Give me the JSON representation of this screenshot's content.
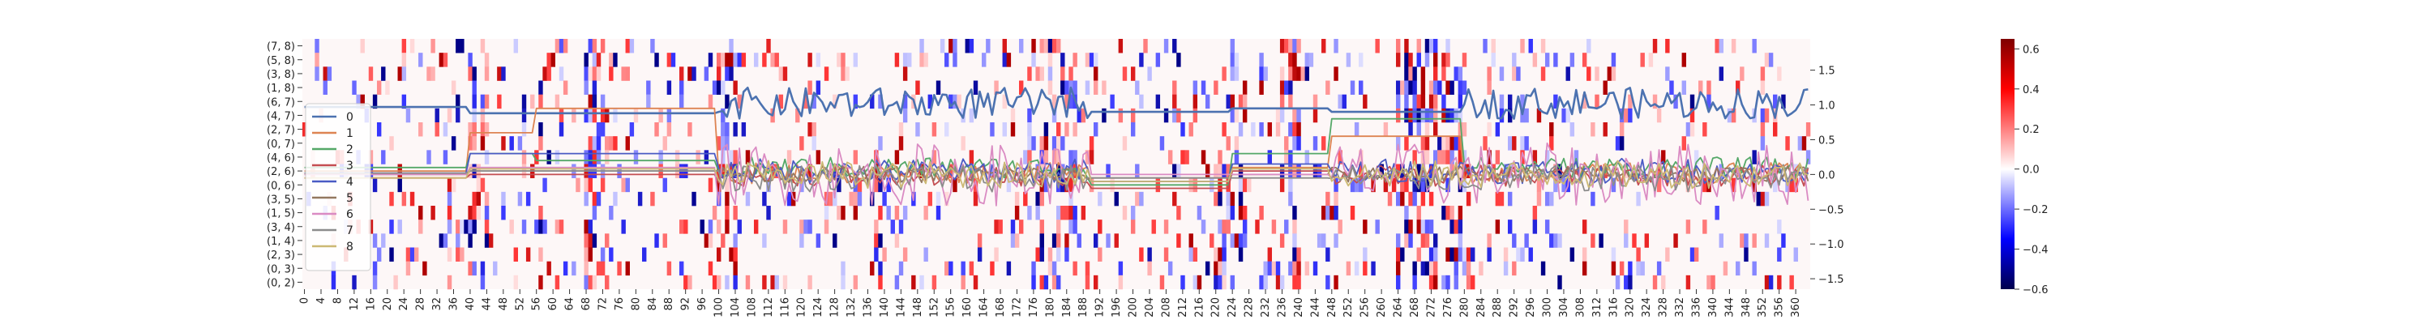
{
  "chart_data": {
    "type": "heatmap",
    "title": "",
    "xlabel": "",
    "ylabel": "",
    "x_ticks": [
      0,
      4,
      8,
      12,
      16,
      20,
      24,
      28,
      32,
      36,
      40,
      44,
      48,
      52,
      56,
      60,
      64,
      68,
      72,
      76,
      80,
      84,
      88,
      92,
      96,
      100,
      104,
      108,
      112,
      116,
      120,
      124,
      128,
      132,
      136,
      140,
      144,
      148,
      152,
      156,
      160,
      164,
      168,
      172,
      176,
      180,
      184,
      188,
      192,
      196,
      200,
      204,
      208,
      212,
      216,
      220,
      224,
      228,
      232,
      236,
      240,
      244,
      248,
      252,
      256,
      260,
      264,
      268,
      272,
      276,
      280,
      284,
      288,
      292,
      296,
      300,
      304,
      308,
      312,
      316,
      320,
      324,
      328,
      332,
      336,
      340,
      344,
      348,
      352,
      356,
      360
    ],
    "x_range": [
      0,
      363
    ],
    "y_labels": [
      "(7, 8)",
      "(5, 8)",
      "(3, 8)",
      "(1, 8)",
      "(6, 7)",
      "(4, 7)",
      "(2, 7)",
      "(0, 7)",
      "(4, 6)",
      "(2, 6)",
      "(0, 6)",
      "(3, 5)",
      "(1, 5)",
      "(3, 4)",
      "(1, 4)",
      "(2, 3)",
      "(0, 3)",
      "(0, 2)"
    ],
    "colorbar": {
      "vmin": -0.6,
      "vmax": 0.65,
      "ticks": [
        "0.6",
        "0.4",
        "0.2",
        "0.0",
        "−0.2",
        "−0.4",
        "−0.6"
      ],
      "tick_values": [
        0.6,
        0.4,
        0.2,
        0.0,
        -0.2,
        -0.4,
        -0.6
      ],
      "colors": [
        "#00004d",
        "#0000ff",
        "#ffffff",
        "#ff0000",
        "#7f0000"
      ]
    },
    "line_axis": {
      "ylim": [
        -1.65,
        1.95
      ],
      "ticks": [
        "1.5",
        "1.0",
        "0.5",
        "0.0",
        "−0.5",
        "−1.0",
        "−1.5"
      ],
      "tick_values": [
        1.5,
        1.0,
        0.5,
        0.0,
        -0.5,
        -1.0,
        -1.5
      ],
      "position": "right"
    },
    "legend": {
      "position": "lower-left"
    },
    "series": [
      {
        "name": "0",
        "color": "#4c72b0",
        "segments": [
          [
            0,
            40,
            0.97
          ],
          [
            40,
            100,
            0.88
          ]
        ],
        "noisy_amp": 0.28,
        "noisy_base": 0.98
      },
      {
        "name": "1",
        "color": "#dd8452",
        "segments": [
          [
            0,
            40,
            0.05
          ],
          [
            40,
            56,
            0.6
          ],
          [
            56,
            100,
            0.95
          ]
        ],
        "noisy_amp": 0.15,
        "noisy_base": 0.02
      },
      {
        "name": "2",
        "color": "#55a868",
        "segments": [
          [
            0,
            40,
            0.1
          ],
          [
            40,
            56,
            0.3
          ],
          [
            56,
            100,
            0.2
          ]
        ],
        "noisy_amp": 0.15,
        "noisy_base": 0.1
      },
      {
        "name": "3",
        "color": "#c44e52",
        "segments": [
          [
            0,
            40,
            -0.05
          ],
          [
            40,
            100,
            0.0
          ]
        ],
        "noisy_amp": 0.15,
        "noisy_base": -0.02
      },
      {
        "name": "4",
        "color": "#4a5bc4",
        "segments": [
          [
            0,
            40,
            0.02
          ],
          [
            40,
            100,
            0.3
          ]
        ],
        "noisy_amp": 0.18,
        "noisy_base": 0.05
      },
      {
        "name": "5",
        "color": "#937860",
        "segments": [
          [
            0,
            40,
            0.0
          ],
          [
            40,
            100,
            0.05
          ]
        ],
        "noisy_amp": 0.12,
        "noisy_base": 0.0
      },
      {
        "name": "6",
        "color": "#da8bc3",
        "segments": [
          [
            0,
            40,
            0.0
          ],
          [
            40,
            100,
            0.1
          ]
        ],
        "noisy_amp": 0.45,
        "noisy_base": 0.0
      },
      {
        "name": "7",
        "color": "#8c8c8c",
        "segments": [
          [
            0,
            40,
            0.02
          ],
          [
            40,
            100,
            0.05
          ]
        ],
        "noisy_amp": 0.2,
        "noisy_base": -0.05
      },
      {
        "name": "8",
        "color": "#ccb974",
        "segments": [
          [
            0,
            40,
            -0.05
          ],
          [
            40,
            100,
            0.08
          ]
        ],
        "noisy_amp": 0.2,
        "noisy_base": 0.0
      }
    ],
    "noisy_ranges": [
      [
        100,
        190
      ],
      [
        248,
        363
      ]
    ],
    "flat_ranges": [
      [
        190,
        224,
        [
          0.9,
          -0.1,
          -0.15,
          -0.2,
          -0.1,
          -0.05,
          0.0,
          -0.05,
          -0.1
        ]
      ],
      [
        224,
        248,
        [
          0.95,
          0.1,
          0.3,
          0.05,
          0.15,
          0.0,
          0.0,
          -0.05,
          0.08
        ]
      ],
      [
        248,
        280,
        [
          0.9,
          0.55,
          0.8,
          0.2,
          0.1,
          0.05,
          0.0,
          0.0,
          0.05
        ]
      ]
    ]
  }
}
